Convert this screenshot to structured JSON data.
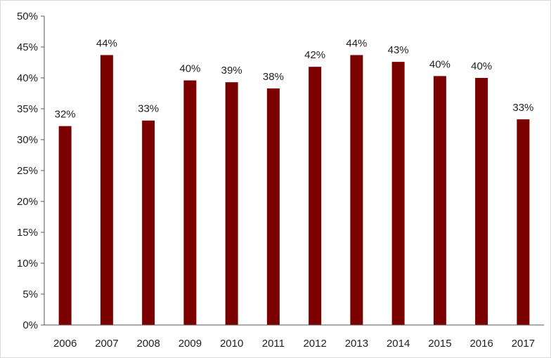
{
  "chart_data": {
    "type": "bar",
    "title": "",
    "xlabel": "",
    "ylabel": "",
    "categories": [
      "2006",
      "2007",
      "2008",
      "2009",
      "2010",
      "2011",
      "2012",
      "2013",
      "2014",
      "2015",
      "2016",
      "2017"
    ],
    "values": [
      32.2,
      43.7,
      33.1,
      39.6,
      39.3,
      38.3,
      41.8,
      43.7,
      42.6,
      40.3,
      40.0,
      33.3
    ],
    "data_labels": [
      "32%",
      "44%",
      "33%",
      "40%",
      "39%",
      "38%",
      "42%",
      "44%",
      "43%",
      "40%",
      "40%",
      "33%"
    ],
    "ylim": [
      0,
      50
    ],
    "y_ticks": [
      0,
      5,
      10,
      15,
      20,
      25,
      30,
      35,
      40,
      45,
      50
    ],
    "y_tick_labels": [
      "0%",
      "5%",
      "10%",
      "15%",
      "20%",
      "25%",
      "30%",
      "35%",
      "40%",
      "45%",
      "50%"
    ],
    "bar_color": "#7b0000",
    "axis_color": "#595959",
    "grid": false,
    "legend": "none"
  }
}
